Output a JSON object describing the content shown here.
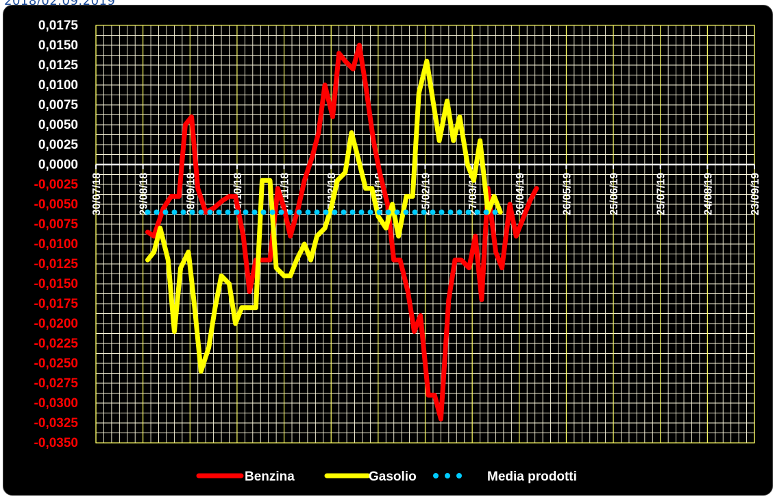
{
  "top_caption": "2018/02.09.2019",
  "chart_data": {
    "type": "line",
    "ylim": [
      -0.035,
      0.0175
    ],
    "ytick_step": 0.0025,
    "yticks_positive": [
      "0,0175",
      "0,0150",
      "0,0125",
      "0,0100",
      "0,0075",
      "0,0050",
      "0,0025",
      "0,0000"
    ],
    "yticks_negative": [
      "-0,0025",
      "-0,0050",
      "-0,0075",
      "-0,0100",
      "-0,0125",
      "-0,0150",
      "-0,0175",
      "-0,0200",
      "-0,0225",
      "-0,0250",
      "-0,0275",
      "-0,0300",
      "-0,0325",
      "-0,0350"
    ],
    "xlim": [
      "30/07/18",
      "23/09/19"
    ],
    "xticks": [
      {
        "label": "30/07/18",
        "x": 0
      },
      {
        "label": "29/08/18",
        "x": 30
      },
      {
        "label": "28/09/18",
        "x": 60
      },
      {
        "label": "28/10/18",
        "x": 90
      },
      {
        "label": "27/11/18",
        "x": 120
      },
      {
        "label": "27/12/18",
        "x": 150
      },
      {
        "label": "26/01/19",
        "x": 180
      },
      {
        "label": "25/02/19",
        "x": 210
      },
      {
        "label": "27/03/19",
        "x": 240
      },
      {
        "label": "26/04/19",
        "x": 270
      },
      {
        "label": "26/05/19",
        "x": 300
      },
      {
        "label": "25/06/19",
        "x": 330
      },
      {
        "label": "25/07/19",
        "x": 360
      },
      {
        "label": "24/08/19",
        "x": 390
      },
      {
        "label": "23/09/19",
        "x": 420
      }
    ],
    "x_unit_note": "days since 30/07/18",
    "grid": true,
    "legend_position": "bottom",
    "series": [
      {
        "name": "Benzina",
        "color": "#ff0000",
        "style": "solid",
        "points": [
          [
            33,
            -0.0085
          ],
          [
            37,
            -0.009
          ],
          [
            43,
            -0.0055
          ],
          [
            48,
            -0.004
          ],
          [
            53,
            -0.004
          ],
          [
            57,
            0.005
          ],
          [
            61,
            0.006
          ],
          [
            65,
            -0.003
          ],
          [
            70,
            -0.006
          ],
          [
            75,
            -0.0055
          ],
          [
            81,
            -0.0045
          ],
          [
            85,
            -0.004
          ],
          [
            89,
            -0.004
          ],
          [
            94,
            -0.009
          ],
          [
            98,
            -0.016
          ],
          [
            102,
            -0.012
          ],
          [
            107,
            -0.012
          ],
          [
            111,
            -0.012
          ],
          [
            116,
            -0.003
          ],
          [
            120,
            -0.0055
          ],
          [
            124,
            -0.009
          ],
          [
            129,
            -0.0055
          ],
          [
            133,
            -0.002
          ],
          [
            138,
            0.001
          ],
          [
            142,
            0.004
          ],
          [
            146,
            0.01
          ],
          [
            151,
            0.006
          ],
          [
            155,
            0.014
          ],
          [
            159,
            0.013
          ],
          [
            164,
            0.012
          ],
          [
            168,
            0.015
          ],
          [
            172,
            0.01
          ],
          [
            177,
            0.003
          ],
          [
            181,
            -0.001
          ],
          [
            186,
            -0.005
          ],
          [
            190,
            -0.012
          ],
          [
            194,
            -0.012
          ],
          [
            199,
            -0.016
          ],
          [
            203,
            -0.021
          ],
          [
            207,
            -0.019
          ],
          [
            212,
            -0.029
          ],
          [
            216,
            -0.029
          ],
          [
            220,
            -0.032
          ],
          [
            225,
            -0.017
          ],
          [
            229,
            -0.012
          ],
          [
            233,
            -0.012
          ],
          [
            238,
            -0.013
          ],
          [
            242,
            -0.009
          ],
          [
            246,
            -0.017
          ],
          [
            250,
            -0.003
          ],
          [
            255,
            -0.011
          ],
          [
            259,
            -0.013
          ],
          [
            264,
            -0.005
          ],
          [
            268,
            -0.009
          ],
          [
            272,
            -0.007
          ],
          [
            277,
            -0.0045
          ],
          [
            281,
            -0.003
          ]
        ]
      },
      {
        "name": "Gasolio",
        "color": "#ffff00",
        "style": "solid",
        "points": [
          [
            33,
            -0.012
          ],
          [
            37,
            -0.011
          ],
          [
            41,
            -0.008
          ],
          [
            46,
            -0.012
          ],
          [
            50,
            -0.021
          ],
          [
            54,
            -0.013
          ],
          [
            59,
            -0.011
          ],
          [
            63,
            -0.018
          ],
          [
            67,
            -0.026
          ],
          [
            72,
            -0.023
          ],
          [
            76,
            -0.018
          ],
          [
            80,
            -0.014
          ],
          [
            85,
            -0.015
          ],
          [
            89,
            -0.02
          ],
          [
            93,
            -0.018
          ],
          [
            98,
            -0.018
          ],
          [
            102,
            -0.018
          ],
          [
            106,
            -0.002
          ],
          [
            111,
            -0.002
          ],
          [
            115,
            -0.013
          ],
          [
            120,
            -0.014
          ],
          [
            124,
            -0.014
          ],
          [
            128,
            -0.012
          ],
          [
            133,
            -0.01
          ],
          [
            137,
            -0.012
          ],
          [
            141,
            -0.009
          ],
          [
            146,
            -0.008
          ],
          [
            150,
            -0.0055
          ],
          [
            154,
            -0.002
          ],
          [
            159,
            -0.001
          ],
          [
            163,
            0.004
          ],
          [
            167,
            0.001
          ],
          [
            172,
            -0.003
          ],
          [
            176,
            -0.003
          ],
          [
            180,
            -0.0065
          ],
          [
            185,
            -0.008
          ],
          [
            189,
            -0.005
          ],
          [
            193,
            -0.009
          ],
          [
            198,
            -0.004
          ],
          [
            202,
            -0.004
          ],
          [
            206,
            0.009
          ],
          [
            211,
            0.013
          ],
          [
            215,
            0.008
          ],
          [
            219,
            0.003
          ],
          [
            224,
            0.008
          ],
          [
            228,
            0.003
          ],
          [
            232,
            0.006
          ],
          [
            237,
            0.0
          ],
          [
            241,
            -0.002
          ],
          [
            245,
            0.003
          ],
          [
            250,
            -0.006
          ],
          [
            254,
            -0.004
          ],
          [
            258,
            -0.006
          ]
        ]
      },
      {
        "name": "Media prodotti",
        "color": "#00ccff",
        "style": "dotted",
        "points": [
          [
            33,
            -0.006
          ],
          [
            258,
            -0.006
          ]
        ]
      }
    ]
  }
}
